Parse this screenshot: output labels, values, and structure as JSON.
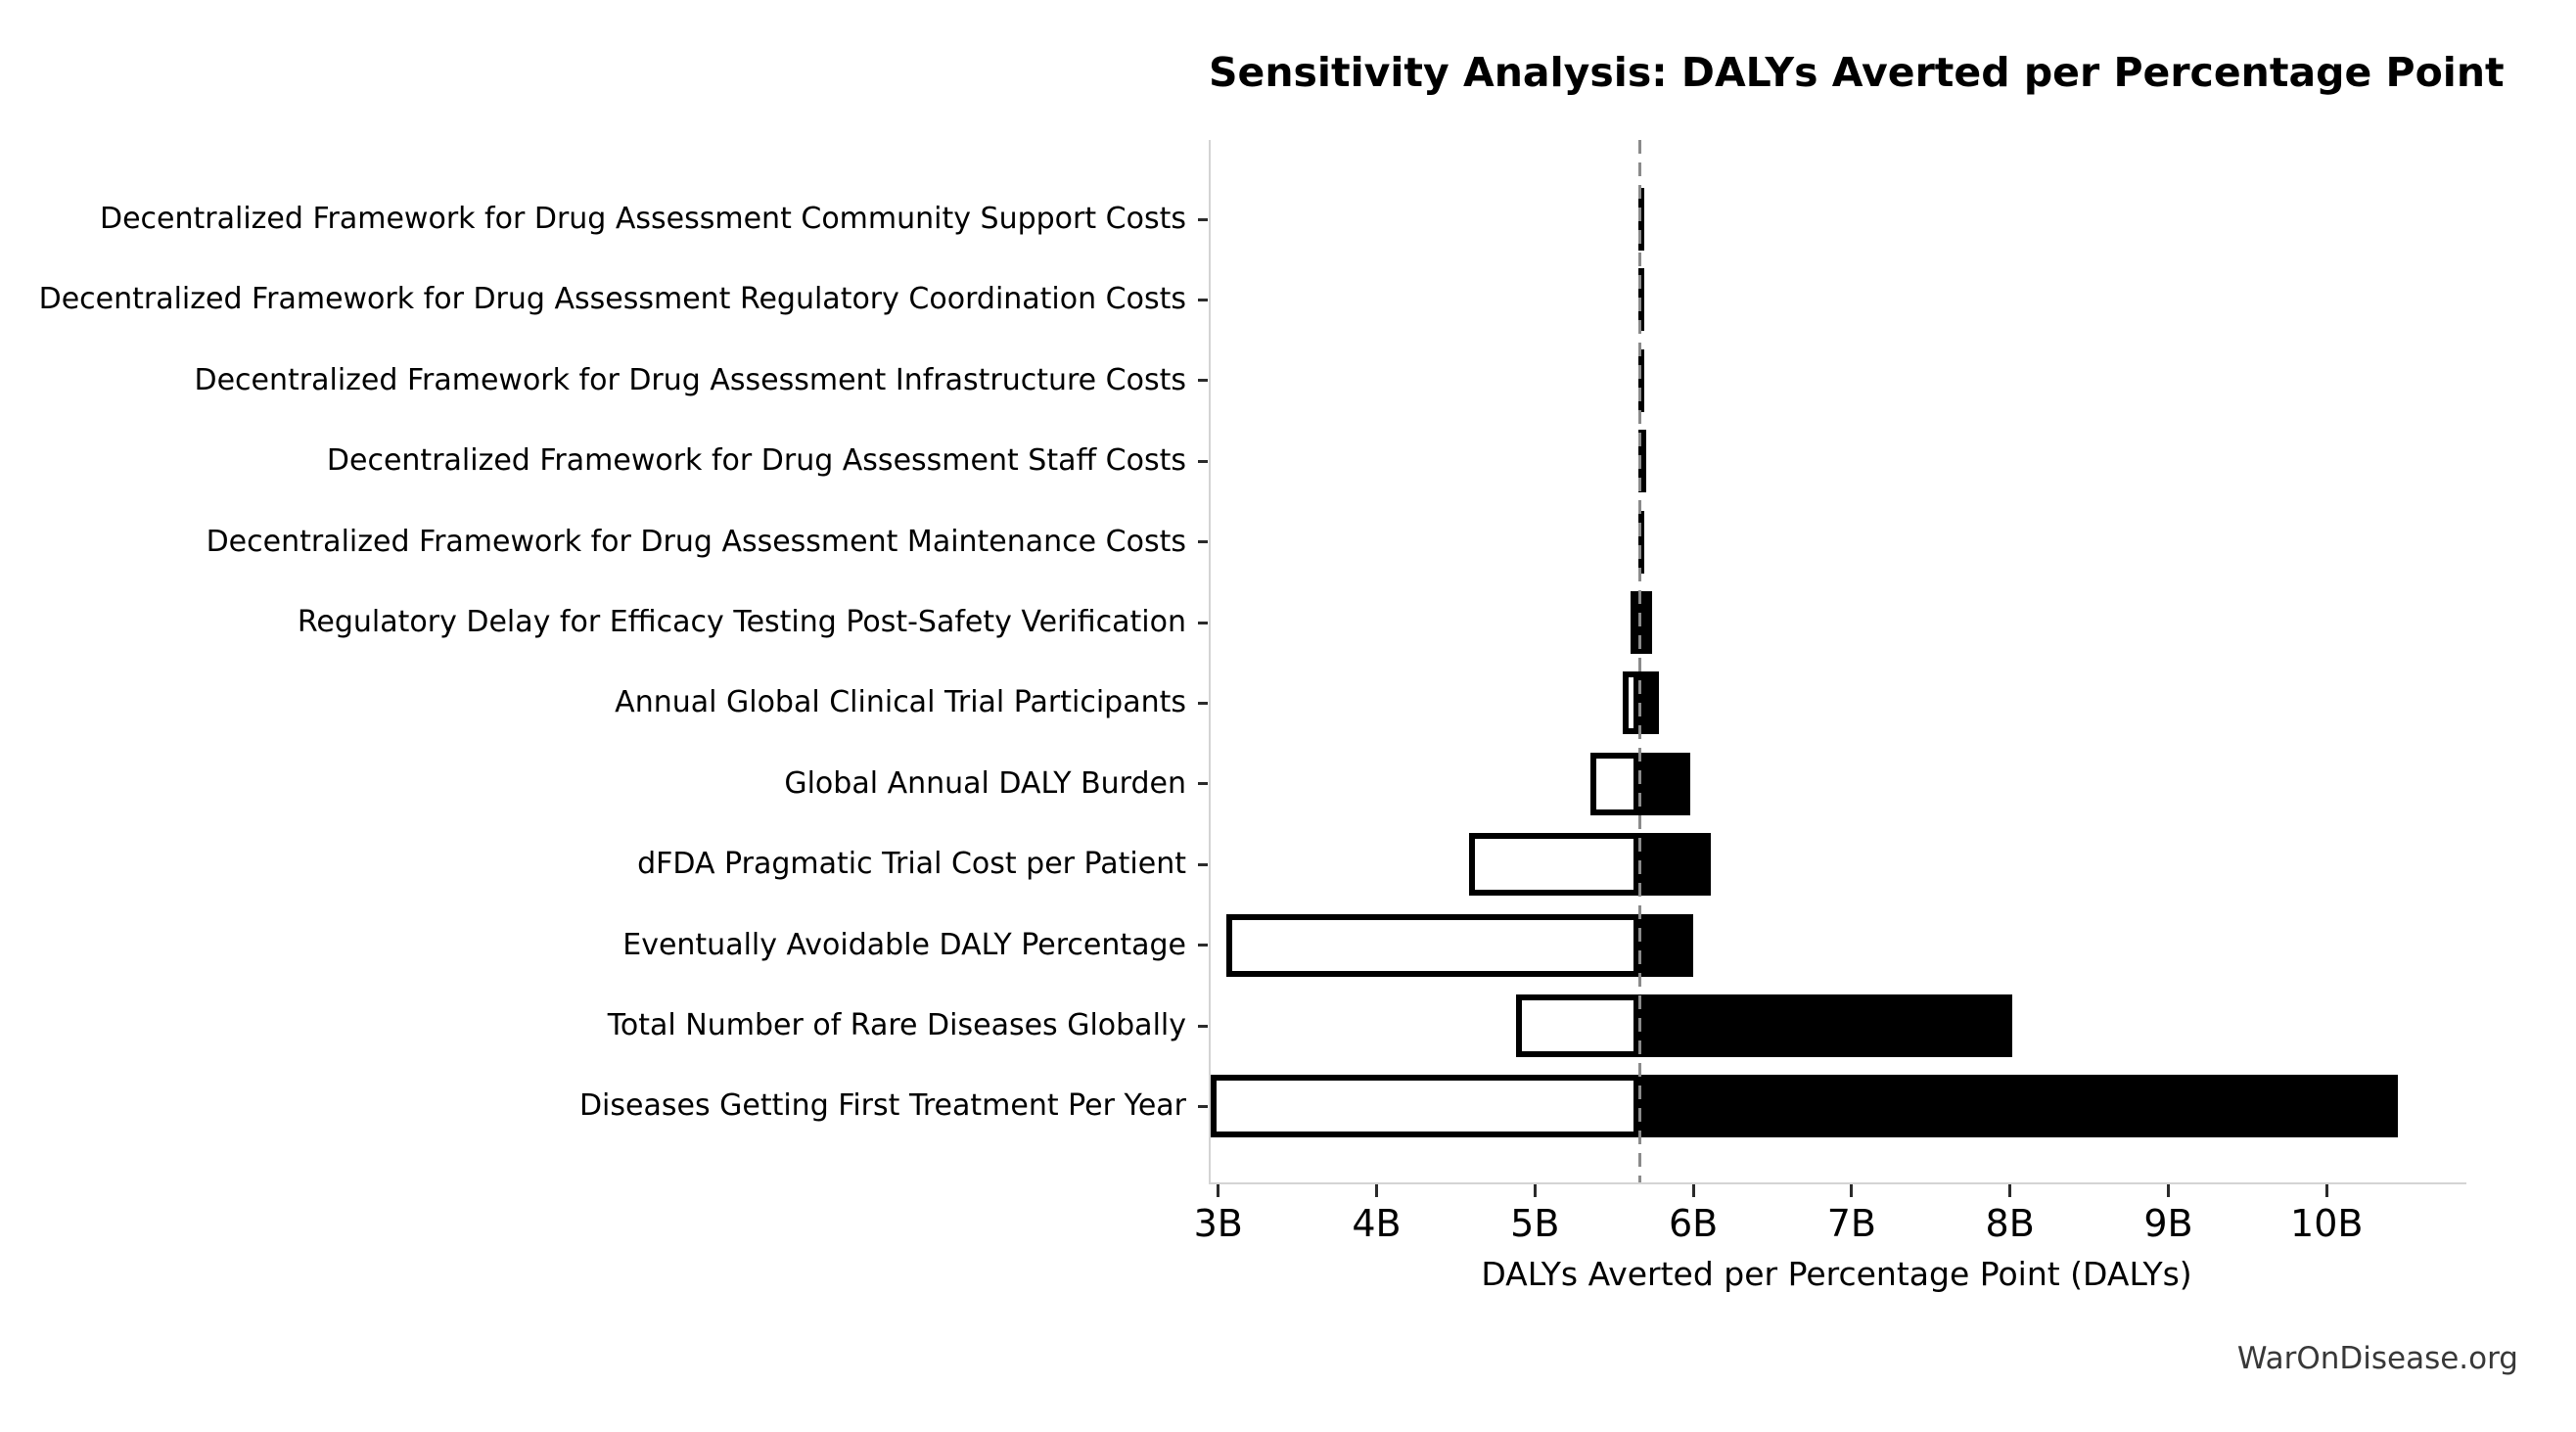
{
  "chart_data": {
    "type": "bar",
    "variant": "tornado-sensitivity",
    "title": "Sensitivity Analysis: DALYs Averted per Percentage Point",
    "xlabel": "DALYs Averted per Percentage Point (DALYs)",
    "watermark": "WarOnDisease.org",
    "unit": "billions (B)",
    "baseline_value": 5.65,
    "xlim": [
      2.94,
      10.87
    ],
    "grid": false,
    "legend": "none",
    "xticks": [
      {
        "value": 3,
        "label": "3B"
      },
      {
        "value": 4,
        "label": "4B"
      },
      {
        "value": 5,
        "label": "5B"
      },
      {
        "value": 6,
        "label": "6B"
      },
      {
        "value": 7,
        "label": "7B"
      },
      {
        "value": 8,
        "label": "8B"
      },
      {
        "value": 9,
        "label": "9B"
      },
      {
        "value": 10,
        "label": "10B"
      }
    ],
    "parameters": [
      {
        "label": "Decentralized Framework for Drug Assessment Community Support Costs",
        "low": 5.64,
        "high": 5.68
      },
      {
        "label": "Decentralized Framework for Drug Assessment Regulatory Coordination Costs",
        "low": 5.64,
        "high": 5.68
      },
      {
        "label": "Decentralized Framework for Drug Assessment Infrastructure Costs",
        "low": 5.64,
        "high": 5.68
      },
      {
        "label": "Decentralized Framework for Drug Assessment Staff Costs",
        "low": 5.64,
        "high": 5.69
      },
      {
        "label": "Decentralized Framework for Drug Assessment Maintenance Costs",
        "low": 5.64,
        "high": 5.68
      },
      {
        "label": "Regulatory Delay for Efficacy Testing Post-Safety Verification",
        "low": 5.59,
        "high": 5.73
      },
      {
        "label": "Annual Global Clinical Trial Participants",
        "low": 5.54,
        "high": 5.77
      },
      {
        "label": "Global Annual DALY Burden",
        "low": 5.34,
        "high": 5.97
      },
      {
        "label": "dFDA Pragmatic Trial Cost per Patient",
        "low": 4.57,
        "high": 6.1
      },
      {
        "label": "Eventually Avoidable DALY Percentage",
        "low": 3.04,
        "high": 5.99
      },
      {
        "label": "Total Number of Rare Diseases Globally",
        "low": 4.87,
        "high": 8.0
      },
      {
        "label": "Diseases Getting First Treatment Per Year",
        "low": 2.94,
        "high": 10.44
      }
    ],
    "colors": {
      "bar_low_fill": "#ffffff",
      "bar_high_fill": "#000000",
      "bar_border": "#000000",
      "baseline_dash": "#8a8a8a",
      "spine": "#d4d4d4",
      "tick": "#2b2b2b",
      "text": "#000000",
      "watermark_text": "#383838",
      "background": "#ffffff"
    }
  }
}
